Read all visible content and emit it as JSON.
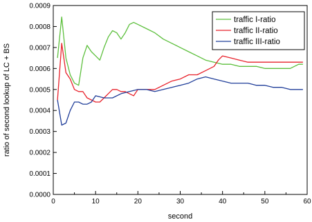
{
  "chart_data": {
    "type": "line",
    "title": "",
    "xlabel": "second",
    "ylabel": "ratio of second lookup of LC + BS",
    "xlim": [
      0,
      60
    ],
    "ylim": [
      0,
      0.0009
    ],
    "x_ticks": [
      0,
      10,
      20,
      30,
      40,
      50,
      60
    ],
    "x_tick_labels": [
      "0",
      "10",
      "20",
      "30",
      "40",
      "50",
      "60"
    ],
    "y_ticks": [
      0,
      0.0001,
      0.0002,
      0.0003,
      0.0004,
      0.0005,
      0.0006,
      0.0007,
      0.0008,
      0.0009
    ],
    "y_tick_labels": [
      "0.0000",
      "0.0001",
      "0.0002",
      "0.0003",
      "0.0004",
      "0.0005",
      "0.0006",
      "0.0007",
      "0.0008",
      "0.0009"
    ],
    "grid": false,
    "legend_position": "top-right",
    "series": [
      {
        "name": "traffic I-ratio",
        "color": "#5cbf3c",
        "x": [
          1,
          2,
          3,
          4,
          5,
          6,
          7,
          8,
          9,
          10,
          11,
          12,
          13,
          14,
          15,
          16,
          17,
          18,
          19,
          20,
          22,
          24,
          26,
          28,
          30,
          32,
          34,
          36,
          38,
          40,
          42,
          44,
          46,
          48,
          50,
          52,
          54,
          56,
          58,
          59
        ],
        "y": [
          0.00065,
          0.000845,
          0.00065,
          0.00057,
          0.00053,
          0.00052,
          0.00065,
          0.00071,
          0.00068,
          0.00066,
          0.00064,
          0.0007,
          0.00075,
          0.00078,
          0.00077,
          0.00074,
          0.00077,
          0.00081,
          0.00082,
          0.00081,
          0.00079,
          0.00077,
          0.00074,
          0.00072,
          0.0007,
          0.00068,
          0.00066,
          0.00064,
          0.00063,
          0.00062,
          0.00062,
          0.00061,
          0.00061,
          0.00061,
          0.0006,
          0.0006,
          0.0006,
          0.0006,
          0.00062,
          0.00062
        ]
      },
      {
        "name": "traffic II-ratio",
        "color": "#e8202a",
        "x": [
          1,
          2,
          3,
          4,
          5,
          6,
          7,
          8,
          9,
          10,
          11,
          12,
          13,
          14,
          15,
          16,
          17,
          18,
          19,
          20,
          22,
          24,
          26,
          28,
          30,
          32,
          34,
          36,
          38,
          39,
          40,
          42,
          44,
          46,
          48,
          50,
          52,
          54,
          56,
          58,
          59
        ],
        "y": [
          0.00045,
          0.00072,
          0.00058,
          0.00055,
          0.0005,
          0.00049,
          0.00049,
          0.00046,
          0.00045,
          0.00044,
          0.00044,
          0.00046,
          0.00048,
          0.0005,
          0.0005,
          0.00049,
          0.00049,
          0.00048,
          0.00047,
          0.0005,
          0.0005,
          0.0005,
          0.00052,
          0.00054,
          0.00055,
          0.00057,
          0.00057,
          0.00059,
          0.00061,
          0.00064,
          0.00066,
          0.00065,
          0.00064,
          0.00063,
          0.00063,
          0.00063,
          0.00063,
          0.00063,
          0.00063,
          0.00063,
          0.00063
        ]
      },
      {
        "name": "traffic III-ratio",
        "color": "#1f3d99",
        "x": [
          1,
          2,
          3,
          4,
          5,
          6,
          7,
          8,
          9,
          10,
          12,
          14,
          16,
          18,
          20,
          22,
          24,
          26,
          28,
          30,
          32,
          34,
          36,
          38,
          40,
          42,
          44,
          46,
          48,
          50,
          52,
          54,
          56,
          58,
          59
        ],
        "y": [
          0.00045,
          0.00033,
          0.00034,
          0.0004,
          0.00044,
          0.00044,
          0.00043,
          0.00043,
          0.00044,
          0.00047,
          0.00046,
          0.00046,
          0.00048,
          0.00049,
          0.0005,
          0.0005,
          0.00049,
          0.0005,
          0.00051,
          0.00052,
          0.00053,
          0.00055,
          0.00056,
          0.00055,
          0.00054,
          0.00053,
          0.00053,
          0.00053,
          0.00052,
          0.00052,
          0.00051,
          0.00051,
          0.0005,
          0.0005,
          0.0005
        ]
      }
    ]
  }
}
